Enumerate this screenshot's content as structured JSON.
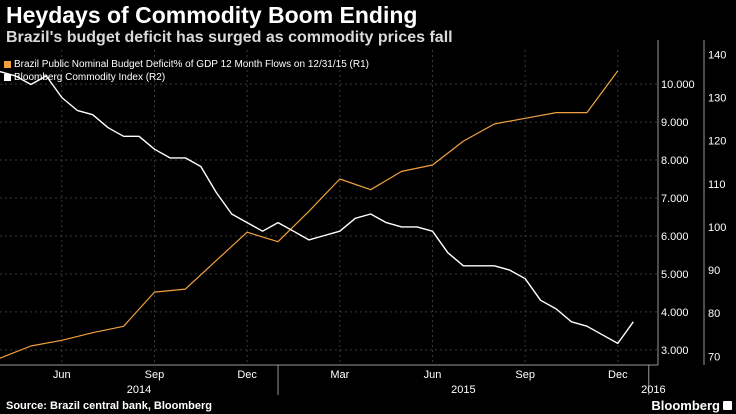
{
  "header": {
    "title": "Heydays of Commodity Boom Ending",
    "subtitle": "Brazil's budget deficit has surged as commodity prices fall"
  },
  "footer": {
    "source": "Source: Brazil central bank, Bloomberg",
    "brand": "Bloomberg"
  },
  "colors": {
    "background": "#000000",
    "deficit": "#f0a040",
    "index": "#ffffff",
    "grid": "#444444"
  },
  "chart_data": {
    "type": "line",
    "title": "Heydays of Commodity Boom Ending",
    "xlabel": "",
    "ylabel": "",
    "x_ticks": [
      "Jun",
      "Sep",
      "Dec",
      "Mar",
      "Jun",
      "Sep",
      "Dec"
    ],
    "x_tick_months": [
      5,
      8,
      11,
      14,
      17,
      20,
      23
    ],
    "years": [
      "2014",
      "2015",
      "2016"
    ],
    "y_right_ticks": [
      "3.000",
      "4.000",
      "5.000",
      "6.000",
      "7.000",
      "8.000",
      "9.000",
      "10.000"
    ],
    "y2_right_ticks": [
      "70",
      "80",
      "90",
      "100",
      "110",
      "120",
      "130",
      "140"
    ],
    "ylim_r1": [
      2.6,
      10.9
    ],
    "ylim_r2": [
      68,
      141
    ],
    "series": [
      {
        "name": "Brazil Public Nominal Budget Deficit% of GDP 12 Month Flows  on 12/31/15 (R1)",
        "axis": "R1",
        "color": "#f0a040",
        "x": [
          3.0,
          4.0,
          5.0,
          6.0,
          7.0,
          8.0,
          9.0,
          10.0,
          11.0,
          12.0,
          13.0,
          14.0,
          15.0,
          16.0,
          17.0,
          18.0,
          19.0,
          20.0,
          21.0,
          22.0,
          23.0
        ],
        "values": [
          2.78,
          3.1,
          3.25,
          3.45,
          3.62,
          4.52,
          4.6,
          5.35,
          6.1,
          5.85,
          6.65,
          7.5,
          7.22,
          7.7,
          7.87,
          8.5,
          8.95,
          9.1,
          9.25,
          9.25,
          10.35
        ]
      },
      {
        "name": "Bloomberg Commodity Index  (R2)",
        "axis": "R2",
        "color": "#ffffff",
        "x": [
          3.0,
          3.5,
          4.0,
          4.5,
          5.0,
          5.5,
          6.0,
          6.5,
          7.0,
          7.5,
          8.0,
          8.5,
          9.0,
          9.5,
          10.0,
          10.5,
          11.0,
          11.5,
          12.0,
          12.5,
          13.0,
          13.5,
          14.0,
          14.5,
          15.0,
          15.5,
          16.0,
          16.5,
          17.0,
          17.5,
          18.0,
          18.5,
          19.0,
          19.5,
          20.0,
          20.5,
          21.0,
          21.5,
          22.0,
          22.5,
          23.0,
          23.3,
          23.5
        ],
        "values": [
          136,
          135,
          133,
          135,
          130,
          127,
          126,
          123,
          121,
          121,
          118,
          116,
          116,
          114,
          108,
          103,
          101,
          99,
          101,
          99,
          97,
          98,
          99,
          102,
          103,
          101,
          100,
          100,
          99,
          94,
          91,
          91,
          91,
          90,
          88,
          83,
          81,
          78,
          77,
          75,
          73,
          76,
          78
        ]
      }
    ]
  }
}
